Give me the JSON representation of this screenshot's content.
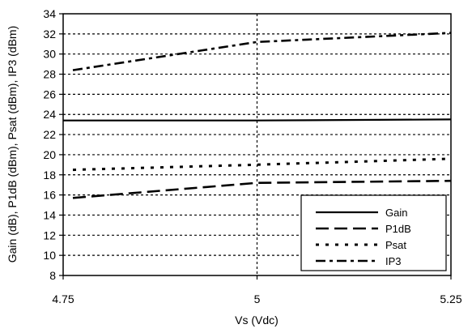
{
  "chart_data": {
    "type": "line",
    "title": "",
    "xlabel": "Vs (Vdc)",
    "ylabel": "Gain (dB), P1dB (dBm), Psat (dBm), IP3 (dBm)",
    "xlim": [
      4.75,
      5.25
    ],
    "ylim": [
      8,
      34
    ],
    "x_ticks": [
      4.75,
      5,
      5.25
    ],
    "x_tick_labels": [
      "4.75",
      "5",
      "5.25"
    ],
    "y_ticks": [
      8,
      10,
      12,
      14,
      16,
      18,
      20,
      22,
      24,
      26,
      28,
      30,
      32,
      34
    ],
    "y_tick_labels": [
      "8",
      "10",
      "12",
      "14",
      "16",
      "18",
      "20",
      "22",
      "24",
      "26",
      "28",
      "30",
      "32",
      "34"
    ],
    "grid": true,
    "legend_position": "bottom-right",
    "x": [
      4.75,
      5.0,
      5.25
    ],
    "series": [
      {
        "name": "Gain",
        "style": "solid",
        "values": [
          23.4,
          23.4,
          23.5
        ]
      },
      {
        "name": "P1dB",
        "style": "dashed",
        "values": [
          15.7,
          17.2,
          17.4
        ]
      },
      {
        "name": "Psat",
        "style": "dotted",
        "values": [
          18.5,
          19.0,
          19.6
        ]
      },
      {
        "name": "IP3",
        "style": "dashdot",
        "values": [
          28.4,
          31.2,
          32.1
        ]
      }
    ]
  }
}
